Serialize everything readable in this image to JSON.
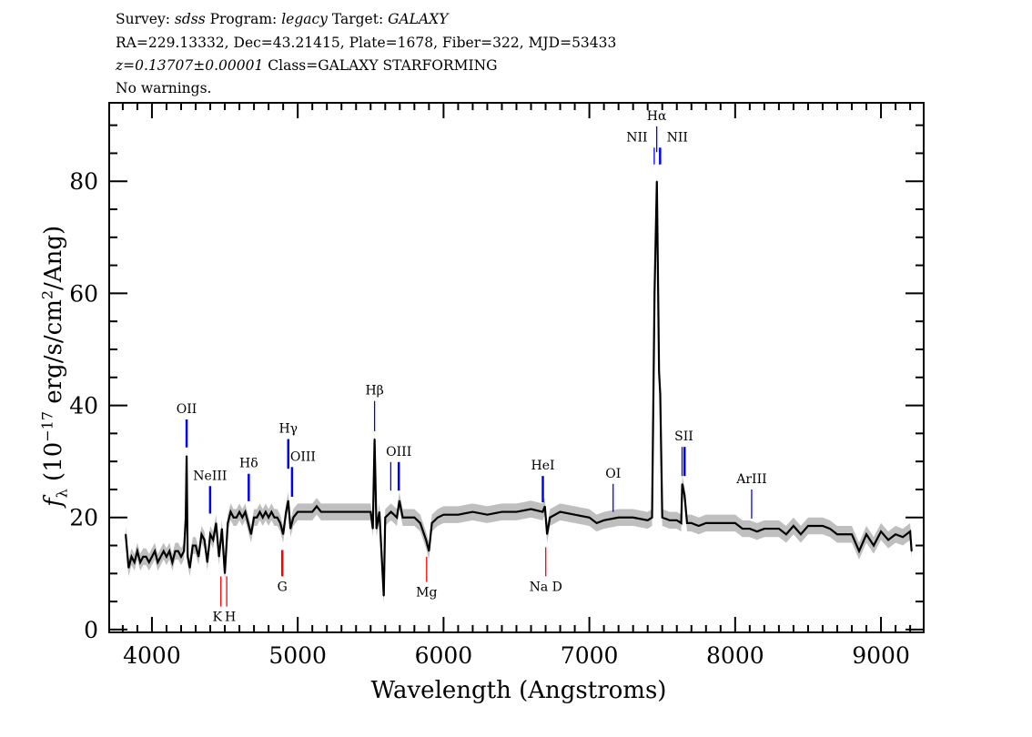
{
  "header": {
    "line1": [
      {
        "text": "Survey: ",
        "italic": false
      },
      {
        "text": "sdss",
        "italic": true
      },
      {
        "text": " Program: ",
        "italic": false
      },
      {
        "text": "legacy",
        "italic": true
      },
      {
        "text": " Target: ",
        "italic": false
      },
      {
        "text": "GALAXY",
        "italic": true
      }
    ],
    "line2": "RA=229.13332, Dec=43.21415, Plate=1678, Fiber=322, MJD=53433",
    "line3_italic": "z=0.13707±0.00001",
    "line3_rest": " Class=GALAXY STARFORMING",
    "line4": "No warnings."
  },
  "chart_data": {
    "type": "line",
    "xlabel": "Wavelength (Angstroms)",
    "ylabel": {
      "f": "f",
      "sub": "λ",
      "pre": " (10",
      "exp": "−17",
      "mid": " erg/s/cm",
      "exp2": "2",
      "post": "/Ang)"
    },
    "xlim": [
      3707,
      9293
    ],
    "ylim": [
      -0.5,
      94
    ],
    "x_ticks": [
      4000,
      5000,
      6000,
      7000,
      8000,
      9000
    ],
    "y_ticks": [
      0,
      20,
      40,
      60,
      80
    ],
    "x_minor_step": 100,
    "y_minor_step": 5,
    "grid": false,
    "line_color": "#000000",
    "band_color": "#bfbfbf",
    "uncertainty_halfwidth": 1.5,
    "x": [
      3820,
      3840,
      3860,
      3880,
      3900,
      3920,
      3940,
      3960,
      3980,
      4000,
      4020,
      4040,
      4060,
      4080,
      4100,
      4120,
      4140,
      4160,
      4180,
      4200,
      4220,
      4232,
      4238,
      4245,
      4260,
      4280,
      4300,
      4320,
      4340,
      4360,
      4380,
      4400,
      4420,
      4440,
      4460,
      4480,
      4500,
      4520,
      4540,
      4560,
      4580,
      4600,
      4620,
      4640,
      4660,
      4680,
      4700,
      4720,
      4740,
      4760,
      4780,
      4800,
      4820,
      4840,
      4860,
      4880,
      4900,
      4920,
      4935,
      4950,
      4970,
      5000,
      5050,
      5100,
      5130,
      5160,
      5200,
      5300,
      5400,
      5500,
      5515,
      5527,
      5540,
      5560,
      5590,
      5600,
      5640,
      5680,
      5697,
      5720,
      5760,
      5800,
      5840,
      5880,
      5900,
      5920,
      5960,
      6000,
      6100,
      6200,
      6300,
      6400,
      6500,
      6600,
      6680,
      6695,
      6710,
      6730,
      6800,
      6900,
      7000,
      7050,
      7100,
      7200,
      7300,
      7400,
      7430,
      7447,
      7463,
      7478,
      7486,
      7500,
      7550,
      7600,
      7630,
      7637,
      7653,
      7670,
      7700,
      7750,
      7800,
      7900,
      7980,
      8000,
      8050,
      8100,
      8150,
      8200,
      8300,
      8350,
      8400,
      8450,
      8500,
      8600,
      8650,
      8700,
      8750,
      8800,
      8850,
      8900,
      8950,
      9000,
      9050,
      9100,
      9150,
      9200,
      9210
    ],
    "y": [
      17,
      11,
      13,
      12,
      14,
      12,
      13,
      13,
      12,
      13,
      14,
      12,
      13,
      14,
      13,
      14,
      12,
      14,
      14,
      13,
      14,
      20,
      31,
      13,
      11,
      15,
      15,
      13,
      17,
      16,
      12,
      17,
      16,
      19,
      13,
      18,
      10,
      19,
      21,
      20,
      20,
      21,
      20,
      21,
      19,
      17,
      20,
      20,
      21,
      20,
      21,
      20,
      21,
      20,
      20,
      19,
      17,
      21,
      23,
      18,
      20,
      21,
      21,
      21,
      22,
      21,
      21,
      21,
      21,
      21,
      18,
      34,
      18,
      21,
      6,
      20,
      21,
      20,
      23,
      20,
      20,
      20,
      19,
      16,
      14,
      19,
      20,
      20.5,
      20.5,
      21,
      20.5,
      21,
      21,
      21.5,
      21,
      22,
      17,
      20,
      21,
      20.5,
      20,
      19,
      19.5,
      20,
      20,
      19.5,
      20,
      60,
      80,
      46,
      42,
      20,
      19.5,
      19.5,
      19,
      26,
      24,
      19,
      19,
      18.5,
      19,
      19,
      19,
      19,
      18,
      18,
      17.5,
      18,
      18,
      17,
      18.5,
      17,
      18.5,
      18.5,
      18,
      17,
      17,
      17,
      14,
      17,
      15,
      17.5,
      16,
      17,
      16.5,
      17.5,
      14
    ],
    "line_markers": [
      {
        "label": "OII",
        "wave": 4238,
        "color": "#0000ff",
        "kind": "emission",
        "y0": 32.5,
        "y1": 37.5,
        "thick": true
      },
      {
        "label": "NeIII",
        "wave": 4399,
        "color": "#0000ff",
        "kind": "emission",
        "y0": 20.7,
        "y1": 25.6,
        "thick": true
      },
      {
        "label": "Hδ",
        "wave": 4664,
        "color": "#0000ff",
        "kind": "emission",
        "y0": 22.9,
        "y1": 27.8,
        "thick": true
      },
      {
        "label": "Hγ",
        "wave": 4935,
        "color": "#0000ff",
        "kind": "emission",
        "y0": 28.7,
        "y1": 34,
        "thick": true
      },
      {
        "label": "OIII",
        "wave": 4961,
        "color": "#0000ff",
        "kind": "emission",
        "y0": 23.7,
        "y1": 29,
        "thick": true,
        "label_dx": 12
      },
      {
        "label": "Hβ",
        "wave": 5527,
        "color": "#0000ff",
        "kind": "emission",
        "y0": 35.4,
        "y1": 40.8,
        "thick": false
      },
      {
        "label": "",
        "wave": 5638,
        "color": "#0000ff",
        "kind": "emission",
        "y0": 24.8,
        "y1": 29.9,
        "thick": false
      },
      {
        "label": "OIII",
        "wave": 5693,
        "color": "#0000ff",
        "kind": "emission",
        "y0": 24.8,
        "y1": 29.9,
        "thick": true
      },
      {
        "label": "HeI",
        "wave": 6681,
        "color": "#0000ff",
        "kind": "emission",
        "y0": 22.7,
        "y1": 27.4,
        "thick": true
      },
      {
        "label": "OI",
        "wave": 7163,
        "color": "#0000ff",
        "kind": "emission",
        "y0": 21,
        "y1": 26,
        "thick": false
      },
      {
        "label": "NII",
        "wave": 7445,
        "color": "#0000ff",
        "kind": "emission",
        "y0": 83,
        "y1": 86,
        "thick": false,
        "label_dx": -19
      },
      {
        "label": "Hα",
        "wave": 7462,
        "color": "#0000ff",
        "kind": "emission",
        "y0": 85.2,
        "y1": 89.8,
        "thick": false
      },
      {
        "label": "NII",
        "wave": 7485,
        "color": "#0000ff",
        "kind": "emission",
        "y0": 83,
        "y1": 86,
        "thick": true,
        "label_dx": 19
      },
      {
        "label": "SII",
        "wave": 7636,
        "color": "#0000ff",
        "kind": "emission",
        "y0": 27.4,
        "y1": 32.6,
        "thick": false,
        "label_dx": 2
      },
      {
        "label": "",
        "wave": 7653,
        "color": "#0000ff",
        "kind": "emission",
        "y0": 27.4,
        "y1": 32.6,
        "thick": true
      },
      {
        "label": "ArIII",
        "wave": 8113,
        "color": "#0000ff",
        "kind": "emission",
        "y0": 19.8,
        "y1": 25,
        "thick": false
      },
      {
        "label": "K",
        "wave": 4473,
        "color": "#ff0000",
        "kind": "absorption",
        "y0": 4.1,
        "y1": 9.5,
        "thick": false,
        "label_dx": -4
      },
      {
        "label": "H",
        "wave": 4513,
        "color": "#ff0000",
        "kind": "absorption",
        "y0": 4.1,
        "y1": 9.5,
        "thick": false,
        "label_dx": 4
      },
      {
        "label": "G",
        "wave": 4894,
        "color": "#ff0000",
        "kind": "absorption",
        "y0": 9.5,
        "y1": 14.2,
        "thick": true
      },
      {
        "label": "Mg",
        "wave": 5884,
        "color": "#ff0000",
        "kind": "absorption",
        "y0": 8.5,
        "y1": 13,
        "thick": false
      },
      {
        "label": "Na  D",
        "wave": 6701,
        "color": "#ff0000",
        "kind": "absorption",
        "y0": 9.5,
        "y1": 14.7,
        "thick": false
      }
    ]
  }
}
